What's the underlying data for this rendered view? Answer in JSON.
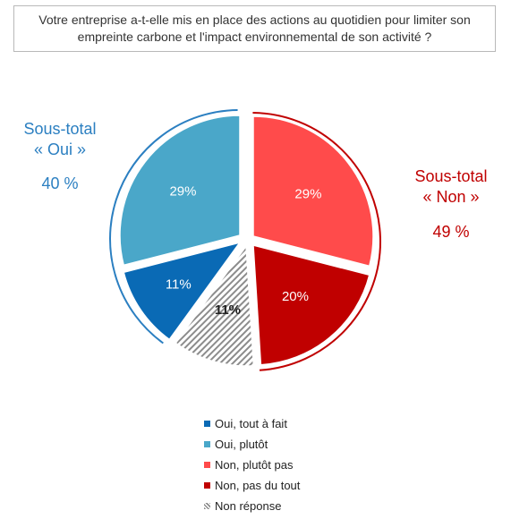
{
  "question": "Votre entreprise a-t-elle mis en place des actions au quotidien pour limiter son empreinte carbone et l'impact environnemental de son activité ?",
  "subtotals": {
    "oui": {
      "line1": "Sous-total",
      "line2": "« Oui »",
      "pct": "40 %",
      "color": "#2b7fc1"
    },
    "non": {
      "line1": "Sous-total",
      "line2": "« Non »",
      "pct": "49 %",
      "color": "#c00000"
    }
  },
  "chart_data": {
    "type": "pie",
    "title": "",
    "unit": "%",
    "slices": [
      {
        "label": "Non, plutôt pas",
        "value": 29,
        "display": "29%",
        "color": "#ff4b4b",
        "pattern": "solid"
      },
      {
        "label": "Non, pas du tout",
        "value": 20,
        "display": "20%",
        "color": "#c00000",
        "pattern": "solid"
      },
      {
        "label": "Non réponse",
        "value": 11,
        "display": "11%",
        "color": "#8c8c8c",
        "pattern": "hatched"
      },
      {
        "label": "Oui, tout à fait",
        "value": 11,
        "display": "11%",
        "color": "#0a6ab5",
        "pattern": "solid"
      },
      {
        "label": "Oui, plutôt",
        "value": 29,
        "display": "29%",
        "color": "#4aa7c9",
        "pattern": "solid"
      }
    ],
    "legend": [
      {
        "label": "Oui, tout à fait",
        "color": "#0a6ab5"
      },
      {
        "label": "Oui, plutôt",
        "color": "#4aa7c9"
      },
      {
        "label": "Non, plutôt pas",
        "color": "#ff4b4b"
      },
      {
        "label": "Non, pas du tout",
        "color": "#c00000"
      },
      {
        "label": "Non réponse",
        "color": "#8c8c8c"
      }
    ],
    "legend_position": "bottom"
  }
}
